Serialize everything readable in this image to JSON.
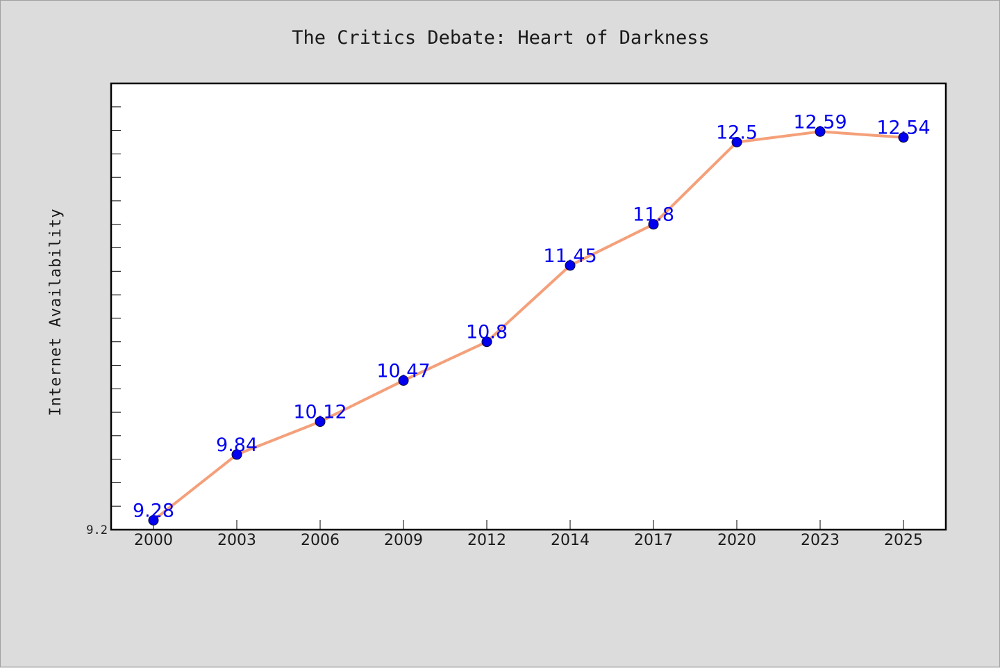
{
  "chart_data": {
    "type": "line",
    "title": "The Critics Debate: Heart of Darkness",
    "xlabel": "",
    "ylabel": "Internet Availability",
    "categories": [
      "2000",
      "2003",
      "2006",
      "2009",
      "2012",
      "2014",
      "2017",
      "2020",
      "2023",
      "2025"
    ],
    "series": [
      {
        "values": [
          9.28,
          9.84,
          10.12,
          10.47,
          10.8,
          11.45,
          11.8,
          12.5,
          12.59,
          12.54
        ],
        "labels": [
          "9.28",
          "9.84",
          "10.12",
          "10.47",
          "10.8",
          "11.45",
          "11.8",
          "12.5",
          "12.59",
          "12.54"
        ],
        "line_color": "#f4a07a",
        "marker_color": "#0000ee",
        "label_color": "#0000ee"
      }
    ],
    "ylim": [
      9.2,
      13.0
    ],
    "ytick_labels": [
      "9.2"
    ],
    "legend": "none",
    "grid": false
  }
}
